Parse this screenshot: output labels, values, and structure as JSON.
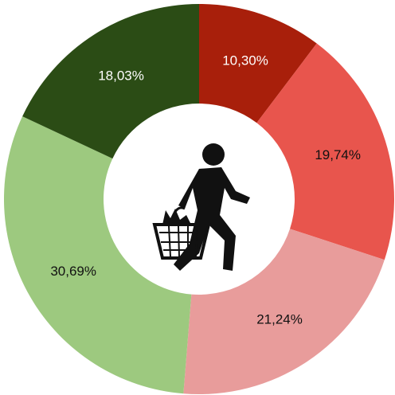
{
  "chart_data": {
    "type": "donut",
    "values": [
      10.3,
      19.74,
      21.24,
      30.69,
      18.03
    ],
    "value_labels": [
      "10,30%",
      "19,74%",
      "21,24%",
      "30,69%",
      "18,03%"
    ],
    "colors": [
      "#a81f0b",
      "#e8554d",
      "#e89c9b",
      "#9dc97f",
      "#2b4c15"
    ]
  }
}
